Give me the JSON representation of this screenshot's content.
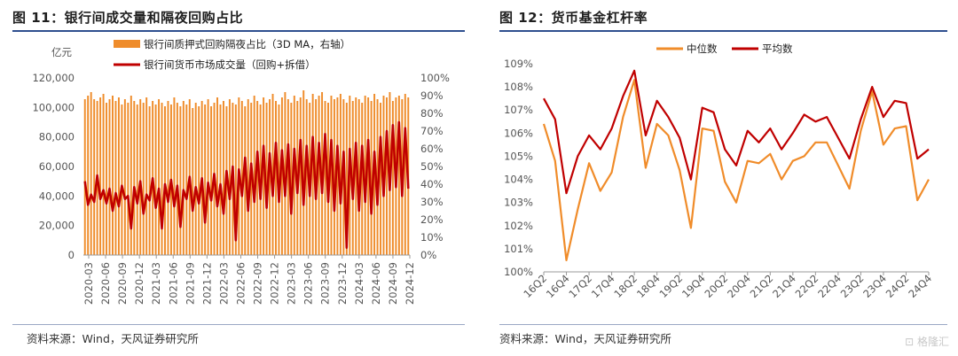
{
  "charts": [
    {
      "title": "图 11：银行间成交量和隔夜回购占比",
      "source": "资料来源：Wind，天风证券研究所",
      "chart_data": {
        "type": "bar",
        "left_unit": "亿元",
        "left_ticks": [
          "0",
          "20,000",
          "40,000",
          "60,000",
          "80,000",
          "100,000",
          "120,000"
        ],
        "left_ylim": [
          0,
          120000
        ],
        "right_ticks": [
          "0%",
          "10%",
          "20%",
          "30%",
          "40%",
          "50%",
          "60%",
          "70%",
          "80%",
          "90%",
          "100%"
        ],
        "right_ylim": [
          0,
          100
        ],
        "x_tick_labels": [
          "2020-03",
          "2020-06",
          "2020-09",
          "2020-12",
          "2021-03",
          "2021-06",
          "2021-09",
          "2021-12",
          "2022-03",
          "2022-06",
          "2022-09",
          "2022-12",
          "2023-03",
          "2023-06",
          "2023-09",
          "2023-12",
          "2024-03",
          "2024-06",
          "2024-09",
          "2024-12"
        ],
        "series": [
          {
            "name": "银行间质押式回购隔夜占比（3D MA，右轴）",
            "axis": "right",
            "color": "#ef8c2b",
            "values": [
              88,
              90,
              92,
              88,
              87,
              89,
              91,
              86,
              88,
              90,
              87,
              89,
              85,
              88,
              86,
              90,
              87,
              85,
              88,
              86,
              89,
              84,
              87,
              85,
              88,
              86,
              84,
              87,
              85,
              89,
              86,
              84,
              87,
              85,
              88,
              83,
              86,
              84,
              87,
              85,
              88,
              84,
              86,
              89,
              85,
              87,
              84,
              88,
              86,
              85,
              89,
              87,
              84,
              88,
              86,
              90,
              87,
              85,
              89,
              86,
              88,
              91,
              87,
              85,
              89,
              92,
              88,
              86,
              90,
              87,
              89,
              93,
              88,
              86,
              91,
              88,
              90,
              92,
              87,
              86,
              90,
              88,
              89,
              91,
              88,
              86,
              90,
              87,
              89,
              88,
              86,
              90,
              89,
              87,
              91,
              88,
              86,
              90,
              89,
              92,
              87,
              89,
              90,
              88,
              91,
              89
            ]
          },
          {
            "name": "银行间货币市场成交量（回购+拆借）",
            "axis": "left",
            "color": "#c00000",
            "values": [
              50000,
              34000,
              41000,
              36000,
              54000,
              38000,
              44000,
              35000,
              45000,
              30000,
              42000,
              33000,
              47000,
              38000,
              40000,
              18000,
              46000,
              35000,
              50000,
              28000,
              41000,
              37000,
              52000,
              32000,
              45000,
              18000,
              48000,
              36000,
              51000,
              33000,
              47000,
              19000,
              44000,
              38000,
              53000,
              30000,
              46000,
              35000,
              52000,
              22000,
              49000,
              37000,
              55000,
              33000,
              48000,
              28000,
              57000,
              38000,
              60000,
              10000,
              58000,
              40000,
              66000,
              30000,
              62000,
              36000,
              70000,
              38000,
              74000,
              32000,
              69000,
              40000,
              76000,
              36000,
              71000,
              40000,
              75000,
              28000,
              72000,
              42000,
              78000,
              34000,
              74000,
              40000,
              80000,
              38000,
              76000,
              42000,
              82000,
              36000,
              78000,
              30000,
              74000,
              35000,
              70000,
              5000,
              72000,
              38000,
              76000,
              30000,
              74000,
              36000,
              78000,
              28000,
              70000,
              34000,
              80000,
              40000,
              84000,
              44000,
              88000,
              46000,
              90000,
              40000,
              86000,
              45000
            ]
          }
        ]
      }
    },
    {
      "title": "图 12：货币基金杠杆率",
      "source": "资料来源：Wind，天风证券研究所",
      "chart_data": {
        "type": "line",
        "y_ticks": [
          "100%",
          "101%",
          "102%",
          "103%",
          "104%",
          "105%",
          "106%",
          "107%",
          "108%",
          "109%"
        ],
        "ylim": [
          100,
          109
        ],
        "x_tick_labels": [
          "16Q2",
          "16Q4",
          "17Q2",
          "17Q4",
          "18Q2",
          "18Q4",
          "19Q2",
          "19Q4",
          "20Q2",
          "20Q4",
          "21Q2",
          "21Q4",
          "22Q2",
          "22Q4",
          "23Q2",
          "23Q4",
          "24Q2",
          "24Q4"
        ],
        "x": [
          "16Q2",
          "16Q3",
          "16Q4",
          "17Q1",
          "17Q2",
          "17Q3",
          "17Q4",
          "18Q1",
          "18Q2",
          "18Q3",
          "18Q4",
          "19Q1",
          "19Q2",
          "19Q3",
          "19Q4",
          "20Q1",
          "20Q2",
          "20Q3",
          "20Q4",
          "21Q1",
          "21Q2",
          "21Q3",
          "21Q4",
          "22Q1",
          "22Q2",
          "22Q3",
          "22Q4",
          "23Q1",
          "23Q2",
          "23Q3",
          "23Q4",
          "24Q1",
          "24Q2",
          "24Q3",
          "24Q4"
        ],
        "series": [
          {
            "name": "中位数",
            "color": "#f08c2a",
            "values": [
              106.4,
              104.8,
              100.5,
              102.7,
              104.7,
              103.5,
              104.3,
              106.7,
              108.3,
              104.5,
              106.4,
              105.9,
              104.4,
              101.9,
              106.2,
              106.1,
              103.9,
              103.0,
              104.8,
              104.7,
              105.1,
              104.0,
              104.8,
              105.0,
              105.6,
              105.6,
              104.6,
              103.6,
              106.1,
              107.8,
              105.5,
              106.2,
              106.3,
              103.1,
              104.0
            ]
          },
          {
            "name": "平均数",
            "color": "#c00000",
            "values": [
              107.5,
              106.6,
              103.4,
              105.0,
              105.9,
              105.3,
              106.2,
              107.6,
              108.7,
              105.9,
              107.4,
              106.7,
              105.8,
              104.0,
              107.1,
              106.9,
              105.3,
              104.6,
              106.1,
              105.6,
              106.2,
              105.3,
              106.0,
              106.8,
              106.5,
              106.7,
              105.8,
              104.9,
              106.6,
              108.0,
              106.7,
              107.4,
              107.3,
              104.9,
              105.3
            ]
          }
        ]
      }
    }
  ],
  "watermark": "格隆汇"
}
